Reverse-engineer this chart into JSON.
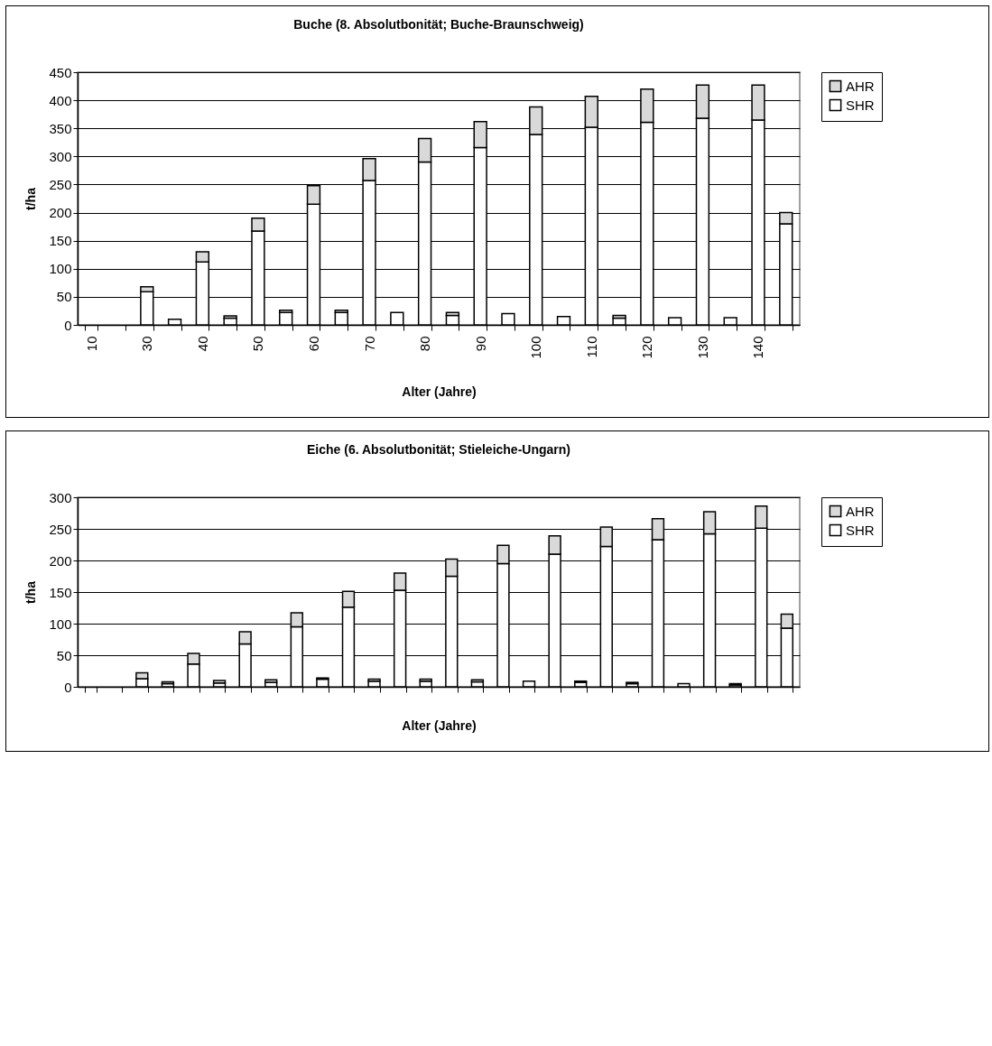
{
  "chart_data": [
    {
      "type": "bar",
      "title": "Buche (8. Absolutbonität; Buche-Braunschweig)",
      "xlabel": "Alter (Jahre)",
      "ylabel": "t/ha",
      "stacked": true,
      "grid": "y",
      "legend": "right",
      "ylim": [
        0,
        450
      ],
      "yticks": [
        0,
        50,
        100,
        150,
        200,
        250,
        300,
        350,
        400,
        450
      ],
      "categories": [
        "10",
        null,
        "30",
        null,
        "40",
        null,
        "50",
        null,
        "60",
        null,
        "70",
        null,
        "80",
        null,
        "90",
        null,
        "100",
        null,
        "110",
        null,
        "120",
        null,
        "130",
        null,
        "140",
        null
      ],
      "series": [
        {
          "name": "SHR",
          "color": "#ffffff",
          "values": [
            null,
            null,
            59,
            10,
            112,
            12,
            167,
            22,
            215,
            22,
            257,
            22,
            290,
            17,
            316,
            20,
            339,
            15,
            352,
            12,
            361,
            13,
            368,
            13,
            365,
            180
          ]
        },
        {
          "name": "AHR",
          "color": "#d9d9d9",
          "values": [
            null,
            null,
            9,
            null,
            18,
            4,
            23,
            4,
            33,
            4,
            39,
            null,
            42,
            5,
            46,
            null,
            49,
            null,
            55,
            5,
            59,
            null,
            59,
            null,
            62,
            20
          ]
        }
      ]
    },
    {
      "type": "bar",
      "title": "Eiche (6. Absolutbonität; Stieleiche-Ungarn)",
      "xlabel": "Alter (Jahre)",
      "ylabel": "t/ha",
      "stacked": true,
      "grid": "y",
      "legend": "right",
      "ylim": [
        0,
        300
      ],
      "yticks": [
        0,
        50,
        100,
        150,
        200,
        250,
        300
      ],
      "tick_labels": "y",
      "categories": [
        null,
        null,
        null,
        null,
        null,
        null,
        null,
        null,
        null,
        null,
        null,
        null,
        null,
        null,
        null,
        null,
        null,
        null,
        null,
        null,
        null,
        null,
        null,
        null,
        null,
        null,
        null,
        null
      ],
      "series": [
        {
          "name": "SHR",
          "color": "#ffffff",
          "values": [
            null,
            null,
            13,
            5,
            36,
            6,
            68,
            7,
            95,
            12,
            126,
            9,
            153,
            9,
            175,
            8,
            195,
            9,
            210,
            7,
            222,
            5,
            233,
            5,
            242,
            3,
            251,
            93
          ]
        },
        {
          "name": "AHR",
          "color": "#d9d9d9",
          "values": [
            null,
            null,
            9,
            3,
            17,
            4,
            19,
            4,
            22,
            2,
            25,
            3,
            27,
            3,
            27,
            3,
            29,
            null,
            29,
            2,
            31,
            2,
            33,
            null,
            35,
            2,
            35,
            22
          ]
        }
      ]
    }
  ]
}
